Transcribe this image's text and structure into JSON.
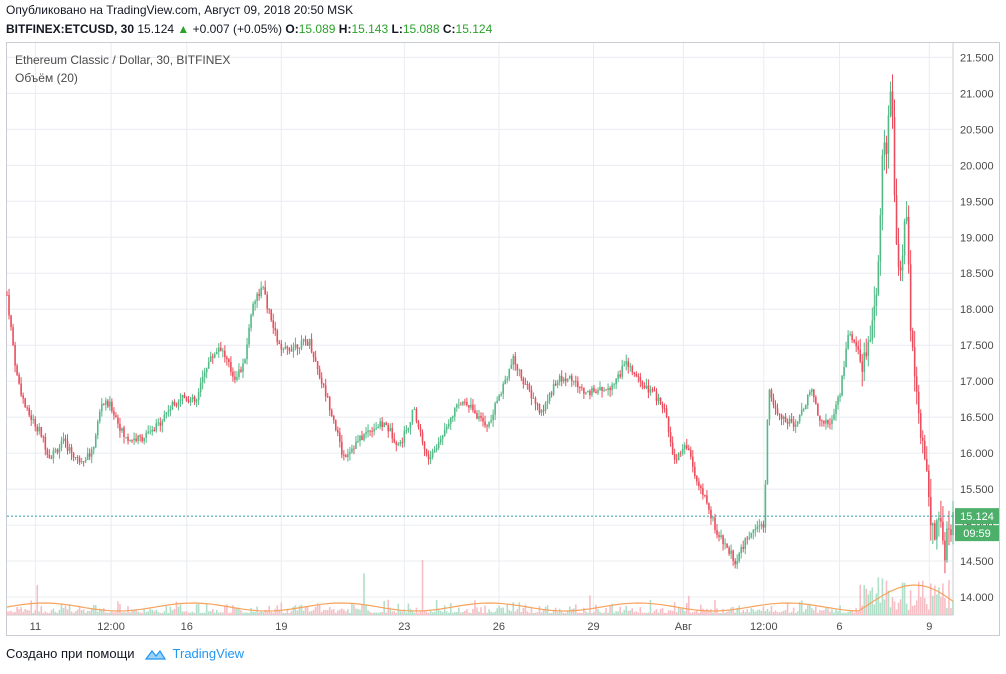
{
  "header": {
    "published": "Опубликовано на TradingView.com, Август 09, 2018 20:50 MSK",
    "symbol": "BITFINEX:ETCUSD, 30",
    "last": "15.124",
    "change": "+0.007 (+0.05%)",
    "o_label": "O:",
    "o_value": "15.089",
    "h_label": "H:",
    "h_value": "15.143",
    "l_label": "L:",
    "l_value": "15.088",
    "c_label": "C:",
    "c_value": "15.124",
    "up_arrow_icon": "triangle-up-icon"
  },
  "legend": {
    "series_title": "Ethereum Classic / Dollar, 30, BITFINEX",
    "volume_title": "Объём (20)"
  },
  "footer": {
    "made_with": "Создано при помощи",
    "brand": "TradingView",
    "brand_icon": "tradingview-cloud-icon"
  },
  "colors": {
    "up": "#53b987",
    "down": "#eb4d5c",
    "grid": "#e9ecf1",
    "price_line": "#2aa3a3",
    "price_tag": "#4caf6a",
    "volume_ma": "#f7a35c",
    "brand": "#2196f3"
  },
  "chart_data": {
    "type": "candlestick",
    "title": "Ethereum Classic / Dollar, 30, BITFINEX",
    "ylim": [
      13.75,
      21.7
    ],
    "y_ticks": [
      "21.500",
      "21.000",
      "20.500",
      "20.000",
      "19.500",
      "19.000",
      "18.500",
      "18.000",
      "17.500",
      "17.000",
      "16.500",
      "16.000",
      "15.500",
      "15.000",
      "14.500",
      "14.000"
    ],
    "x_ticks": [
      {
        "label": "11",
        "t": 0.03
      },
      {
        "label": "12:00",
        "t": 0.11
      },
      {
        "label": "16",
        "t": 0.19
      },
      {
        "label": "19",
        "t": 0.29
      },
      {
        "label": "23",
        "t": 0.42
      },
      {
        "label": "26",
        "t": 0.52
      },
      {
        "label": "29",
        "t": 0.62
      },
      {
        "label": "Авг",
        "t": 0.715
      },
      {
        "label": "12:00",
        "t": 0.8
      },
      {
        "label": "6",
        "t": 0.88
      },
      {
        "label": "9",
        "t": 0.975
      }
    ],
    "price_path": [
      [
        0.0,
        18.2
      ],
      [
        0.01,
        17.1
      ],
      [
        0.02,
        16.6
      ],
      [
        0.035,
        16.3
      ],
      [
        0.045,
        15.95
      ],
      [
        0.06,
        16.15
      ],
      [
        0.075,
        15.9
      ],
      [
        0.09,
        16.0
      ],
      [
        0.1,
        16.7
      ],
      [
        0.11,
        16.65
      ],
      [
        0.125,
        16.2
      ],
      [
        0.14,
        16.2
      ],
      [
        0.155,
        16.3
      ],
      [
        0.17,
        16.6
      ],
      [
        0.185,
        16.8
      ],
      [
        0.2,
        16.7
      ],
      [
        0.21,
        17.2
      ],
      [
        0.225,
        17.5
      ],
      [
        0.24,
        17.05
      ],
      [
        0.25,
        17.2
      ],
      [
        0.26,
        18.1
      ],
      [
        0.27,
        18.3
      ],
      [
        0.28,
        17.8
      ],
      [
        0.29,
        17.4
      ],
      [
        0.305,
        17.5
      ],
      [
        0.32,
        17.55
      ],
      [
        0.33,
        17.1
      ],
      [
        0.345,
        16.5
      ],
      [
        0.355,
        15.95
      ],
      [
        0.37,
        16.15
      ],
      [
        0.385,
        16.35
      ],
      [
        0.4,
        16.4
      ],
      [
        0.415,
        16.1
      ],
      [
        0.43,
        16.6
      ],
      [
        0.445,
        15.9
      ],
      [
        0.455,
        16.1
      ],
      [
        0.47,
        16.55
      ],
      [
        0.485,
        16.75
      ],
      [
        0.5,
        16.45
      ],
      [
        0.51,
        16.4
      ],
      [
        0.52,
        16.8
      ],
      [
        0.535,
        17.3
      ],
      [
        0.55,
        16.9
      ],
      [
        0.565,
        16.55
      ],
      [
        0.58,
        17.0
      ],
      [
        0.595,
        17.05
      ],
      [
        0.61,
        16.85
      ],
      [
        0.625,
        16.85
      ],
      [
        0.64,
        16.95
      ],
      [
        0.655,
        17.25
      ],
      [
        0.67,
        16.95
      ],
      [
        0.685,
        16.8
      ],
      [
        0.695,
        16.6
      ],
      [
        0.705,
        15.9
      ],
      [
        0.72,
        16.1
      ],
      [
        0.73,
        15.55
      ],
      [
        0.74,
        15.3
      ],
      [
        0.75,
        14.9
      ],
      [
        0.76,
        14.7
      ],
      [
        0.77,
        14.5
      ],
      [
        0.78,
        14.75
      ],
      [
        0.79,
        15.0
      ],
      [
        0.8,
        14.95
      ],
      [
        0.805,
        16.9
      ],
      [
        0.815,
        16.5
      ],
      [
        0.83,
        16.4
      ],
      [
        0.84,
        16.55
      ],
      [
        0.85,
        16.9
      ],
      [
        0.86,
        16.45
      ],
      [
        0.87,
        16.4
      ],
      [
        0.88,
        16.8
      ],
      [
        0.89,
        17.7
      ],
      [
        0.9,
        17.4
      ],
      [
        0.905,
        17.2
      ],
      [
        0.915,
        17.8
      ],
      [
        0.92,
        18.4
      ],
      [
        0.925,
        20.0
      ],
      [
        0.93,
        20.3
      ],
      [
        0.935,
        21.1
      ],
      [
        0.94,
        18.9
      ],
      [
        0.945,
        18.4
      ],
      [
        0.95,
        19.6
      ],
      [
        0.955,
        17.8
      ],
      [
        0.96,
        17.1
      ],
      [
        0.965,
        16.4
      ],
      [
        0.97,
        16.0
      ],
      [
        0.975,
        15.3
      ],
      [
        0.98,
        14.8
      ],
      [
        0.985,
        15.2
      ],
      [
        0.99,
        14.6
      ],
      [
        1.0,
        15.124
      ]
    ],
    "last_price": 15.124,
    "last_price_label": "15.124",
    "timer_label": "09:59"
  }
}
